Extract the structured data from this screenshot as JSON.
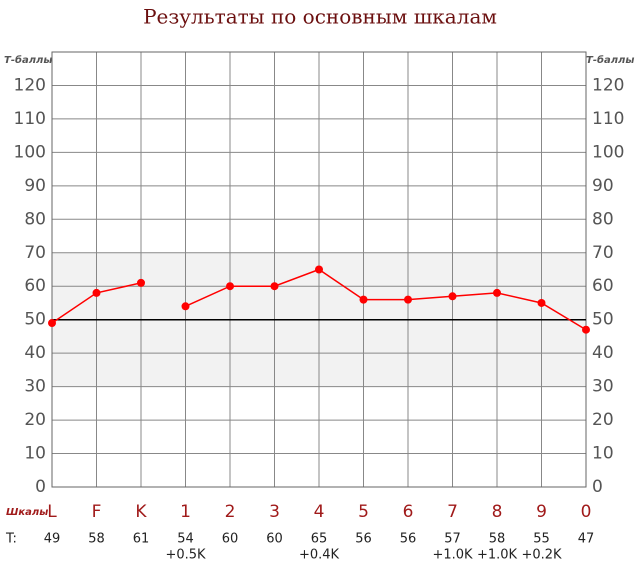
{
  "chart_data": {
    "type": "line",
    "title": "Результаты по основным шкалам",
    "y_label": "Т-баллы",
    "x_label": "Шкалы",
    "score_row_label": "T:",
    "categories": [
      "L",
      "F",
      "K",
      "1",
      "2",
      "3",
      "4",
      "5",
      "6",
      "7",
      "8",
      "9",
      "0"
    ],
    "series": [
      {
        "name": "T",
        "color": "#ff0000",
        "values": [
          49,
          58,
          61,
          54,
          60,
          60,
          65,
          56,
          56,
          57,
          58,
          55,
          47
        ]
      }
    ],
    "corrections": [
      null,
      null,
      null,
      "+0.5K",
      null,
      null,
      "+0.4K",
      null,
      null,
      "+1.0K",
      "+1.0K",
      "+0.2K",
      null
    ],
    "ylim": [
      0,
      130
    ],
    "yticks": [
      0,
      10,
      20,
      30,
      40,
      50,
      60,
      70,
      80,
      90,
      100,
      110,
      120
    ],
    "normal_band": [
      30,
      70
    ],
    "baseline": 50,
    "grid": true
  }
}
